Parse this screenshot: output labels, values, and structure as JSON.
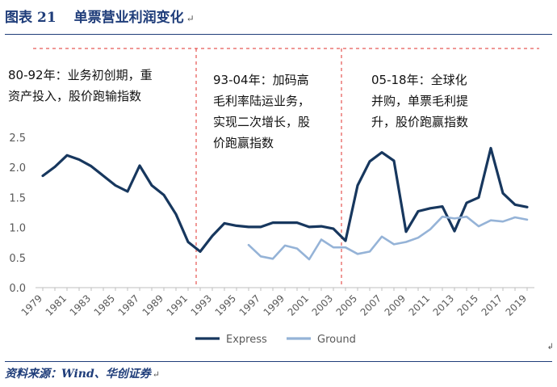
{
  "header": {
    "label": "图表",
    "number": "21",
    "title": "单票营业利润变化",
    "mark": "↵"
  },
  "source": {
    "text": "资料来源：Wind、华创证券",
    "mark": "↵"
  },
  "right_mark": "↲",
  "annotations": [
    {
      "lines": [
        "80-92年：业务初创期，重",
        "资产投入，股价跑输指数"
      ]
    },
    {
      "lines": [
        "93-04年：加码高",
        "毛利率陆运业务，",
        "实现二次增长，股",
        "价跑赢指数"
      ]
    },
    {
      "lines": [
        "05-18年：全球化",
        "并购，单票毛利提",
        "升，股价跑赢指数"
      ]
    }
  ],
  "colors": {
    "express": "#17375e",
    "ground": "#95b3d7",
    "divider": "#e0302d",
    "title": "#1f3d7a"
  },
  "chart_data": {
    "type": "line",
    "x": [
      1979,
      1980,
      1981,
      1982,
      1983,
      1984,
      1985,
      1986,
      1987,
      1988,
      1989,
      1990,
      1991,
      1992,
      1993,
      1994,
      1995,
      1996,
      1997,
      1998,
      1999,
      2000,
      2001,
      2002,
      2003,
      2004,
      2005,
      2006,
      2007,
      2008,
      2009,
      2010,
      2011,
      2012,
      2013,
      2014,
      2015,
      2016,
      2017,
      2018,
      2019
    ],
    "x_ticks": [
      "1979",
      "1981",
      "1983",
      "1985",
      "1987",
      "1989",
      "1991",
      "1993",
      "1995",
      "1997",
      "1999",
      "2001",
      "2003",
      "2005",
      "2007",
      "2009",
      "2011",
      "2013",
      "2015",
      "2017",
      "2019"
    ],
    "y_ticks": [
      "0.0",
      "0.5",
      "1.0",
      "1.5",
      "2.0",
      "2.5"
    ],
    "ylim": [
      0,
      2.5
    ],
    "series": [
      {
        "name": "Express",
        "values": [
          1.86,
          2.01,
          2.2,
          2.13,
          2.02,
          1.86,
          1.7,
          1.6,
          2.03,
          1.7,
          1.54,
          1.22,
          0.76,
          0.6,
          0.86,
          1.07,
          1.03,
          1.01,
          1.01,
          1.08,
          1.08,
          1.08,
          1.01,
          1.02,
          0.98,
          0.78,
          1.7,
          2.1,
          2.25,
          2.11,
          0.93,
          1.27,
          1.32,
          1.35,
          0.94,
          1.41,
          1.5,
          2.32,
          1.57,
          1.38,
          1.34
        ]
      },
      {
        "name": "Ground",
        "values": [
          null,
          null,
          null,
          null,
          null,
          null,
          null,
          null,
          null,
          null,
          null,
          null,
          null,
          null,
          null,
          null,
          null,
          0.71,
          0.52,
          0.48,
          0.7,
          0.65,
          0.47,
          0.8,
          0.67,
          0.67,
          0.56,
          0.6,
          0.85,
          0.72,
          0.76,
          0.83,
          0.97,
          1.18,
          1.15,
          1.18,
          1.02,
          1.12,
          1.1,
          1.17,
          1.13
        ]
      }
    ],
    "dividers": [
      1992,
      2004
    ],
    "legend": "bottom-center",
    "grid": false
  }
}
